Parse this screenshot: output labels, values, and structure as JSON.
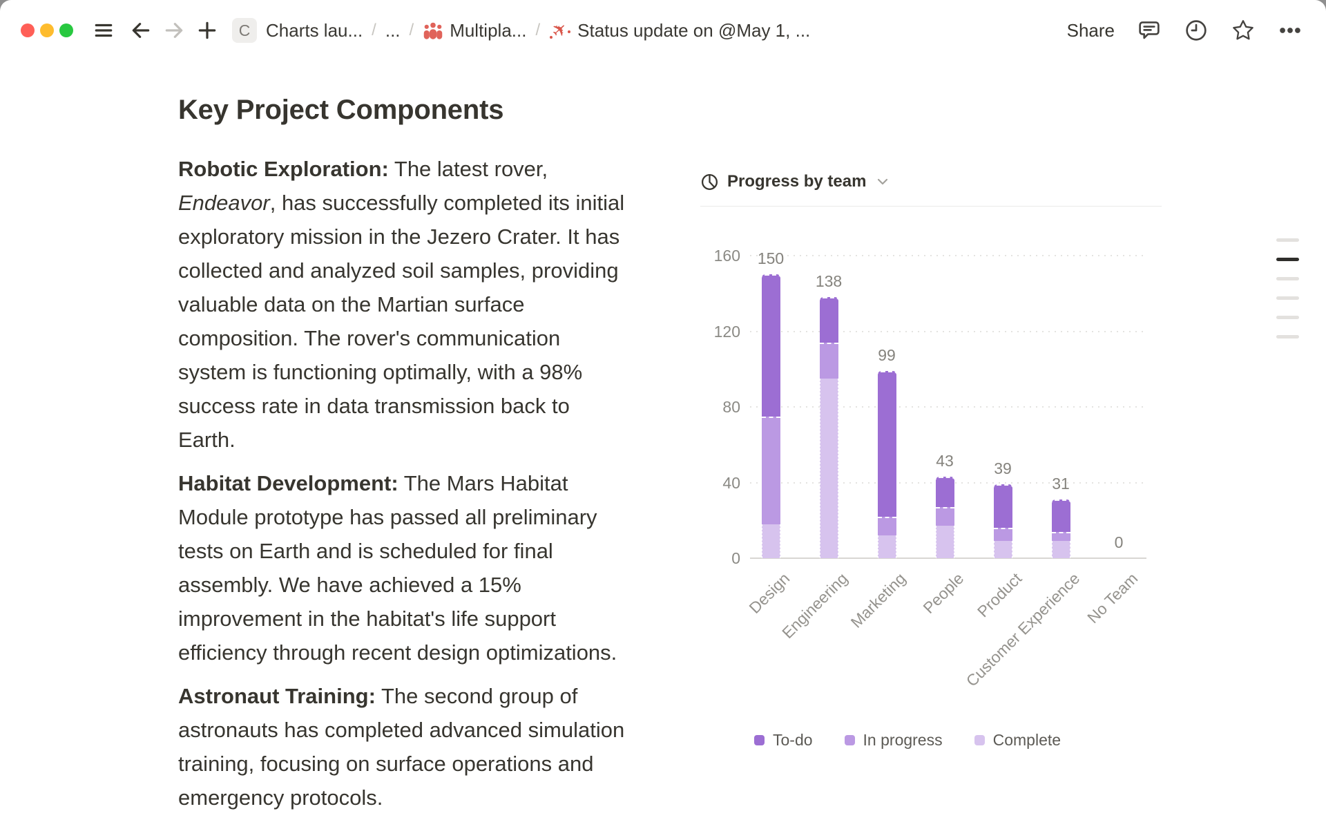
{
  "window": {
    "titlebar": {
      "traffic_lights": [
        {
          "name": "close",
          "color": "#ff5f57"
        },
        {
          "name": "minimize",
          "color": "#febc2e"
        },
        {
          "name": "zoom",
          "color": "#28c840"
        }
      ],
      "nav_icons": [
        "menu-icon",
        "back-arrow-icon",
        "forward-arrow-icon",
        "new-page-icon"
      ],
      "breadcrumb": {
        "separator": "/",
        "items": [
          {
            "badge_letter": "C",
            "label": "Charts lau..."
          },
          {
            "label": "..."
          },
          {
            "icon": "people-icon",
            "icon_color": "#e0635a",
            "label": "Multipla..."
          },
          {
            "icon": "airplane-icon",
            "icon_color": "#d9564a",
            "label": "Status update on @May 1, ..."
          }
        ]
      },
      "share_label": "Share",
      "action_icons": [
        "comments-icon",
        "history-clock-icon",
        "star-icon",
        "more-ellipsis-icon"
      ]
    },
    "outline_indicator": {
      "lines": 6,
      "active_index": 1
    }
  },
  "document": {
    "heading": "Key Project Components",
    "paragraphs": [
      {
        "label": "Robotic Exploration:",
        "pre_italic": " The latest rover, ",
        "italic": "Endeavor",
        "post_italic": ", has successfully completed its initial exploratory mission in the Jezero Crater. It has collected and analyzed soil samples, providing valuable data on the Martian surface composition. The rover's communication system is functioning optimally, with a 98% success rate in data transmission back to Earth."
      },
      {
        "label": "Habitat Development:",
        "text": " The Mars Habitat Module prototype has passed all preliminary tests on Earth and is scheduled for final assembly. We have achieved a 15% improvement in the habitat's life support efficiency through recent design optimizations."
      },
      {
        "label": "Astronaut Training:",
        "text": " The second group of astronauts has completed advanced simulation training, focusing on surface operations and emergency protocols."
      }
    ]
  },
  "chart_data": {
    "type": "bar",
    "stacked": true,
    "title": "Progress by team",
    "title_icon": "pie-chart-icon",
    "categories": [
      "Design",
      "Engineering",
      "Marketing",
      "People",
      "Product",
      "Customer Experience",
      "No Team"
    ],
    "series": [
      {
        "name": "To-do",
        "color": "#9c6ed3",
        "values": [
          75,
          24,
          77,
          16,
          23,
          17,
          0
        ]
      },
      {
        "name": "In progress",
        "color": "#bb99e3",
        "values": [
          57,
          19,
          10,
          10,
          7,
          5,
          0
        ]
      },
      {
        "name": "Complete",
        "color": "#d7c3ee",
        "values": [
          18,
          95,
          12,
          17,
          9,
          9,
          0
        ]
      }
    ],
    "totals": [
      150,
      138,
      99,
      43,
      39,
      31,
      0
    ],
    "y_ticks": [
      0,
      40,
      80,
      120,
      160
    ],
    "ylim": [
      0,
      160
    ],
    "grid": "dotted-horizontal",
    "legend_position": "bottom"
  }
}
